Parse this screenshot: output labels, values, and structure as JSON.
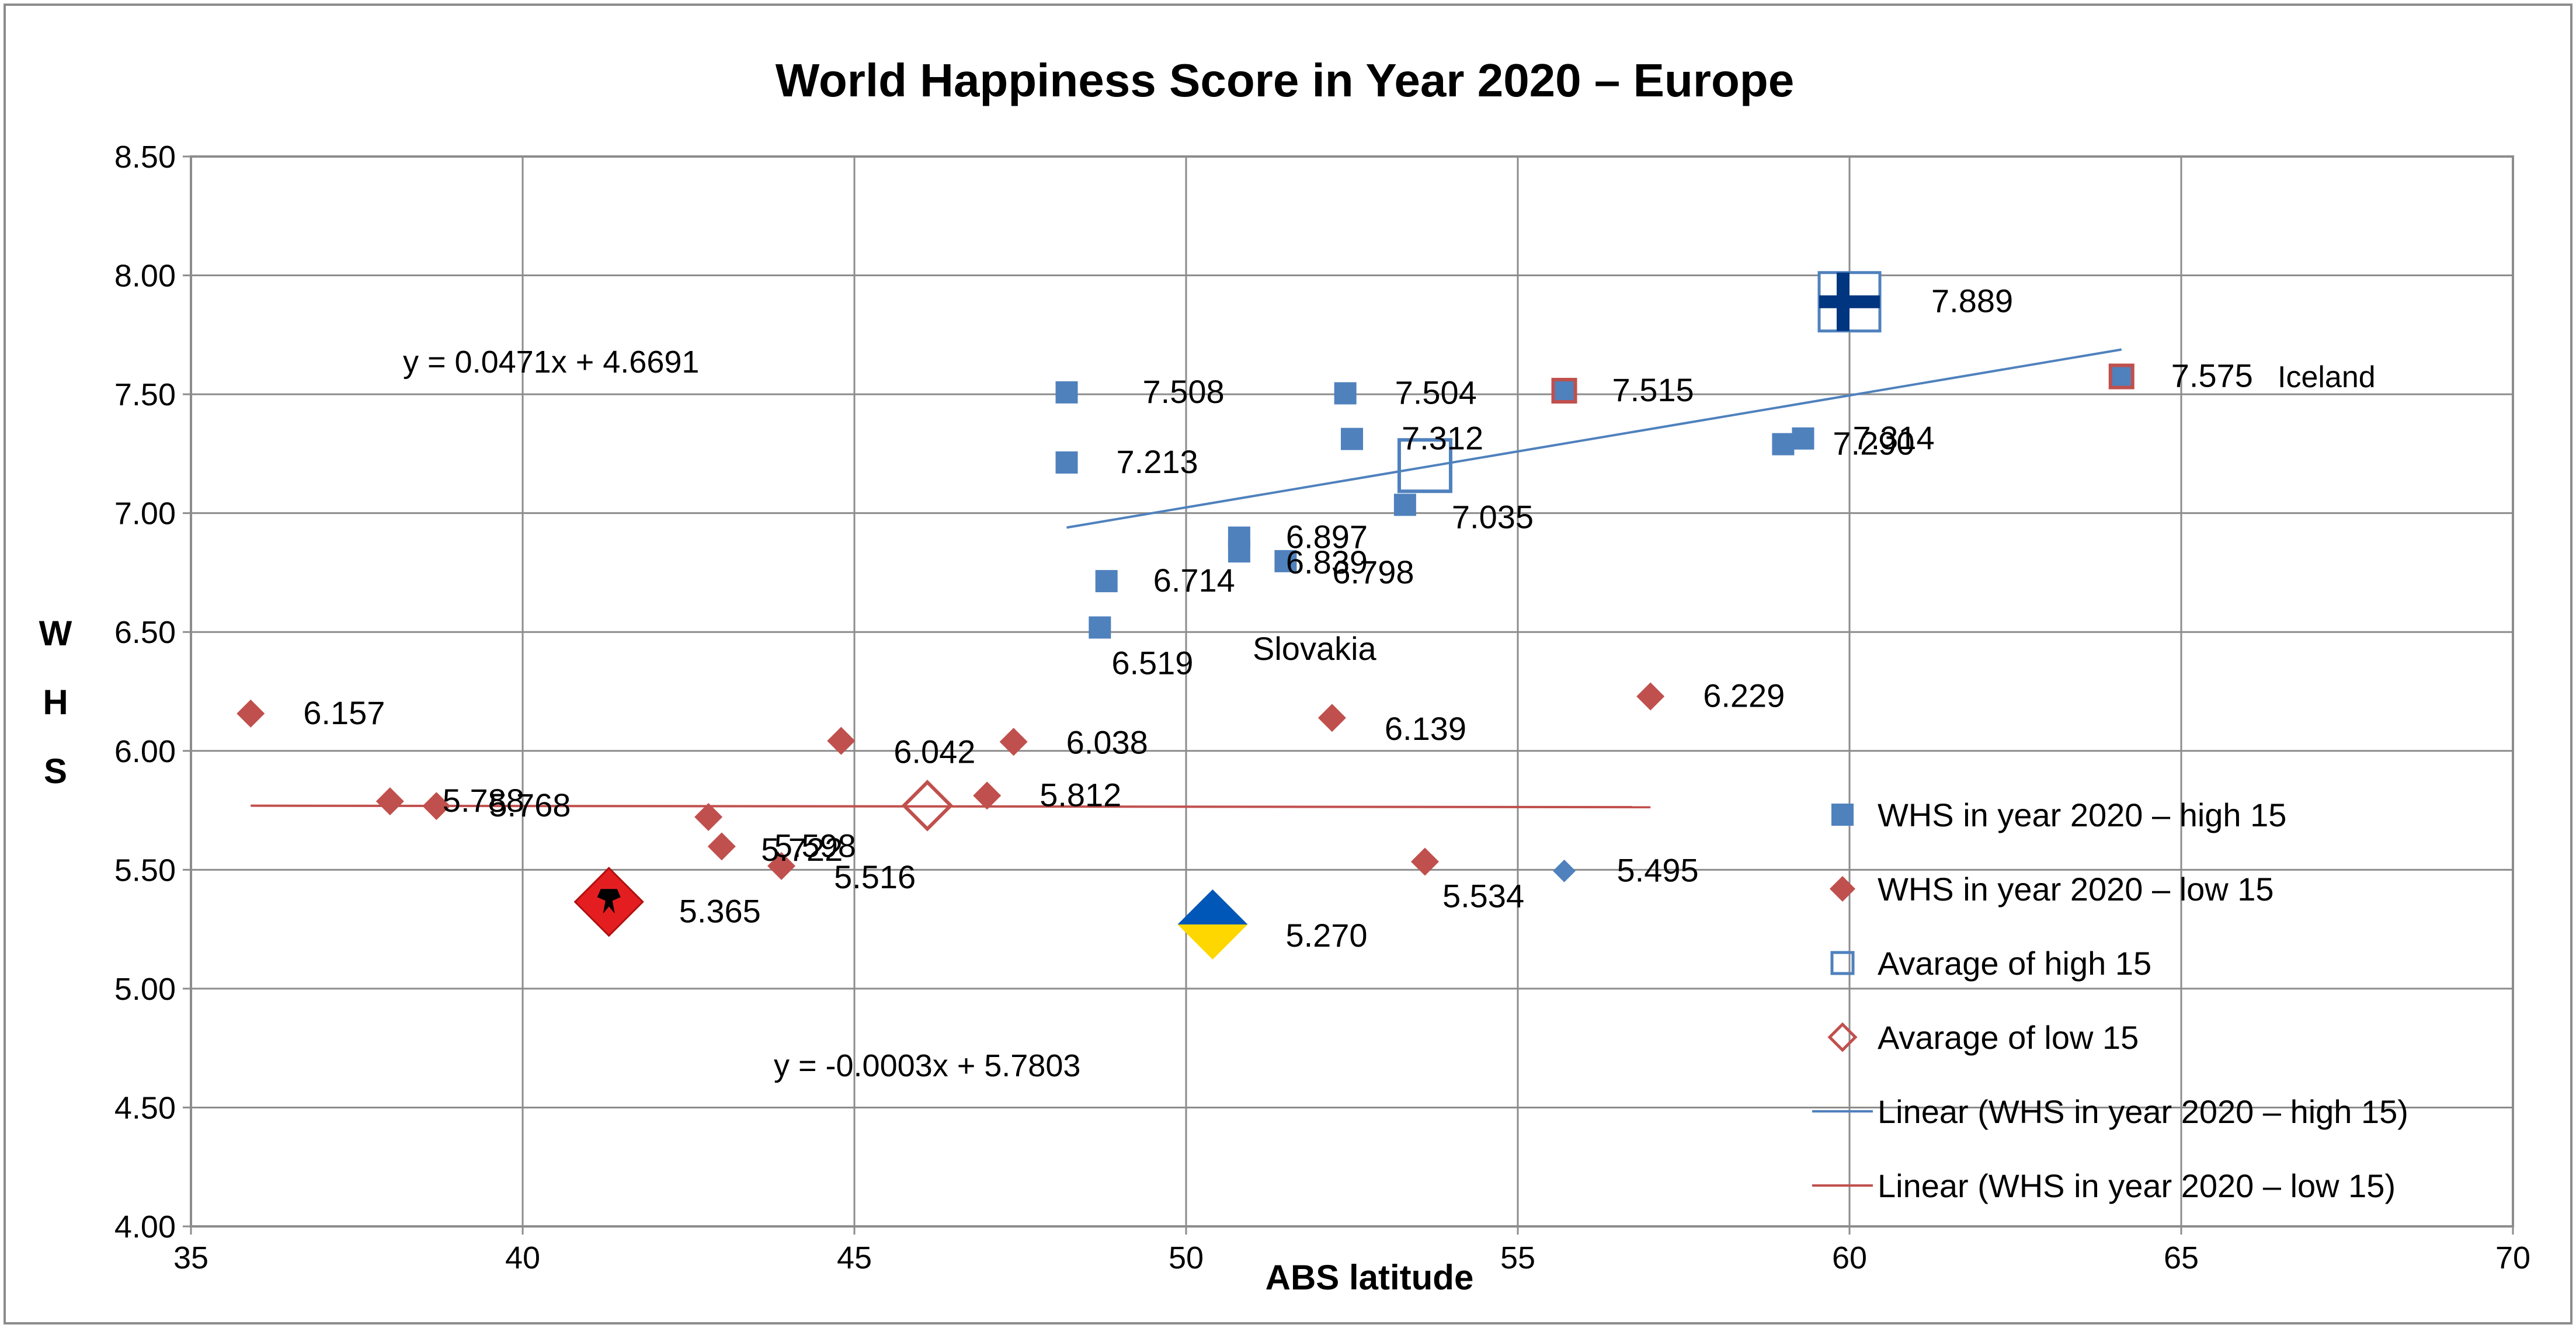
{
  "chart_data": {
    "type": "scatter",
    "title": "World Happiness Score in Year 2020 – Europe",
    "xlabel": "ABS latitude",
    "ylabel_letters": [
      "W",
      "H",
      "S"
    ],
    "xlim": [
      35,
      70
    ],
    "ylim": [
      4.0,
      8.5
    ],
    "x_ticks": [
      "35",
      "40",
      "45",
      "50",
      "55",
      "60",
      "65",
      "70"
    ],
    "y_ticks": [
      "4.00",
      "4.50",
      "5.00",
      "5.50",
      "6.00",
      "6.50",
      "7.00",
      "7.50",
      "8.00",
      "8.50"
    ],
    "grid": true,
    "colors": {
      "high": "#4F81BD",
      "low": "#C0504D",
      "trend_high": "#4F81BD",
      "trend_low": "#C0504D",
      "finland_blue": "#003580",
      "ukraine_blue": "#0057B7",
      "ukraine_yellow": "#FFD700",
      "albania_red": "#E41E20"
    },
    "series": [
      {
        "name": "WHS in year 2020 – high 15",
        "marker": "square",
        "points": [
          {
            "x": 48.2,
            "y": 7.508,
            "label": "7.508"
          },
          {
            "x": 52.4,
            "y": 7.504,
            "label": "7.504"
          },
          {
            "x": 48.2,
            "y": 7.213,
            "label": "7.213"
          },
          {
            "x": 52.5,
            "y": 7.312,
            "label": "7.312"
          },
          {
            "x": 53.3,
            "y": 7.035,
            "label": "7.035"
          },
          {
            "x": 50.8,
            "y": 6.897,
            "label": "6.897"
          },
          {
            "x": 50.8,
            "y": 6.839,
            "label": "6.839"
          },
          {
            "x": 51.5,
            "y": 6.798,
            "label": "6.798"
          },
          {
            "x": 48.8,
            "y": 6.714,
            "label": "6.714"
          },
          {
            "x": 48.7,
            "y": 6.519,
            "label": "6.519"
          },
          {
            "x": 59.0,
            "y": 7.29,
            "label": "7.290"
          },
          {
            "x": 59.3,
            "y": 7.314,
            "label": "7.314"
          },
          {
            "x": 64.1,
            "y": 7.575,
            "label": "7.575"
          },
          {
            "x": 55.7,
            "y": 7.515,
            "label": "7.515"
          },
          {
            "x": 60.0,
            "y": 7.889,
            "label": "7.889"
          }
        ]
      },
      {
        "name": "WHS in year 2020 – low 15",
        "marker": "diamond",
        "points": [
          {
            "x": 35.9,
            "y": 6.157,
            "label": "6.157"
          },
          {
            "x": 38.0,
            "y": 5.788,
            "label": "5.788"
          },
          {
            "x": 38.7,
            "y": 5.768,
            "label": "5.768"
          },
          {
            "x": 42.8,
            "y": 5.722,
            "label": "5.722"
          },
          {
            "x": 43.0,
            "y": 5.598,
            "label": "5.598"
          },
          {
            "x": 43.9,
            "y": 5.516,
            "label": "5.516"
          },
          {
            "x": 44.8,
            "y": 6.042,
            "label": "6.042"
          },
          {
            "x": 47.4,
            "y": 6.038,
            "label": "6.038"
          },
          {
            "x": 47.0,
            "y": 5.812,
            "label": "5.812"
          },
          {
            "x": 52.2,
            "y": 6.139,
            "label": "6.139"
          },
          {
            "x": 53.6,
            "y": 5.534,
            "label": "5.534"
          },
          {
            "x": 57.0,
            "y": 6.229,
            "label": "6.229"
          },
          {
            "x": 55.7,
            "y": 5.495,
            "label": "5.495"
          },
          {
            "x": 41.3,
            "y": 5.365,
            "label": "5.365"
          },
          {
            "x": 50.4,
            "y": 5.27,
            "label": "5.270"
          }
        ]
      },
      {
        "name": "Avarage of high 15",
        "marker": "open-square",
        "points": [
          {
            "x": 53.6,
            "y": 7.2
          }
        ]
      },
      {
        "name": "Avarage of low 15",
        "marker": "open-diamond",
        "points": [
          {
            "x": 46.1,
            "y": 5.77
          }
        ]
      }
    ],
    "trendlines": [
      {
        "name": "Linear (WHS in year 2020 – high 15)",
        "slope": 0.0471,
        "intercept": 4.6691,
        "x_range": [
          48.2,
          64.1
        ],
        "equation": "y = 0.0471x + 4.6691"
      },
      {
        "name": "Linear (WHS in year 2020 – low 15)",
        "slope": -0.0003,
        "intercept": 5.7803,
        "x_range": [
          35.9,
          57.0
        ],
        "equation": "y = -0.0003x + 5.7803"
      }
    ],
    "annotations": {
      "slovakia": "Slovakia",
      "iceland": "Iceland"
    },
    "legend": {
      "position": "right",
      "entries": [
        "WHS in year 2020 – high 15",
        "WHS in year 2020 – low 15",
        "Avarage of high 15",
        "Avarage of low 15",
        "Linear (WHS in year 2020 – high 15)",
        "Linear (WHS in year 2020 – low 15)"
      ]
    }
  }
}
